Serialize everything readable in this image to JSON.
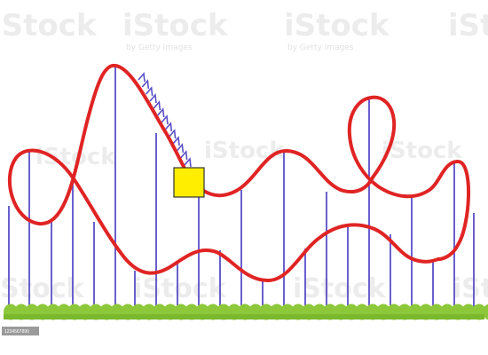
{
  "watermark": {
    "brand": "iStock",
    "byline": "by Getty Images"
  },
  "credit_tag": "1234567890",
  "colors": {
    "track": "#e02424",
    "support": "#5a4fc8",
    "chain": "#5a4fc8",
    "grass": "#8cc83a",
    "ground": "#7ab82e",
    "car": "#ffee00",
    "car_border": "#333333"
  },
  "icons": {
    "car": "yellow-square-car",
    "track": "roller-coaster-track"
  }
}
